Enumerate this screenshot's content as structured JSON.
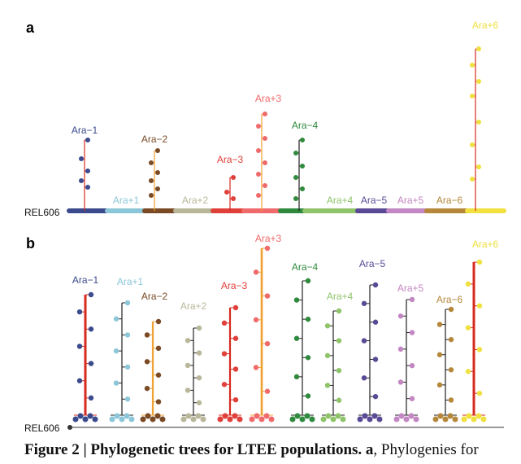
{
  "figure": {
    "panel_a_label": "a",
    "panel_b_label": "b",
    "root_label": "REL606",
    "colors": {
      "line_focus": "#d62a1f",
      "line_mutator": "#f0a030",
      "line_other": "#222222"
    }
  },
  "populations": [
    {
      "name": "Ara−1",
      "color": "#3a4a8c"
    },
    {
      "name": "Ara+1",
      "color": "#8cc7d9"
    },
    {
      "name": "Ara−2",
      "color": "#7a4a25"
    },
    {
      "name": "Ara+2",
      "color": "#b9b79a"
    },
    {
      "name": "Ara−3",
      "color": "#e0403a"
    },
    {
      "name": "Ara+3",
      "color": "#ef6a6a"
    },
    {
      "name": "Ara−4",
      "color": "#2f8a3e"
    },
    {
      "name": "Ara+4",
      "color": "#8fc46a"
    },
    {
      "name": "Ara−5",
      "color": "#5a4a96"
    },
    {
      "name": "Ara+5",
      "color": "#c387c3"
    },
    {
      "name": "Ara−6",
      "color": "#b5873a"
    },
    {
      "name": "Ara+6",
      "color": "#f0e040"
    }
  ],
  "caption": {
    "bold_text": "Figure 2 | Phylogenetic trees for LTEE populations.",
    "bold_a": "a",
    "rest_text": ", Phylogenies for"
  }
}
